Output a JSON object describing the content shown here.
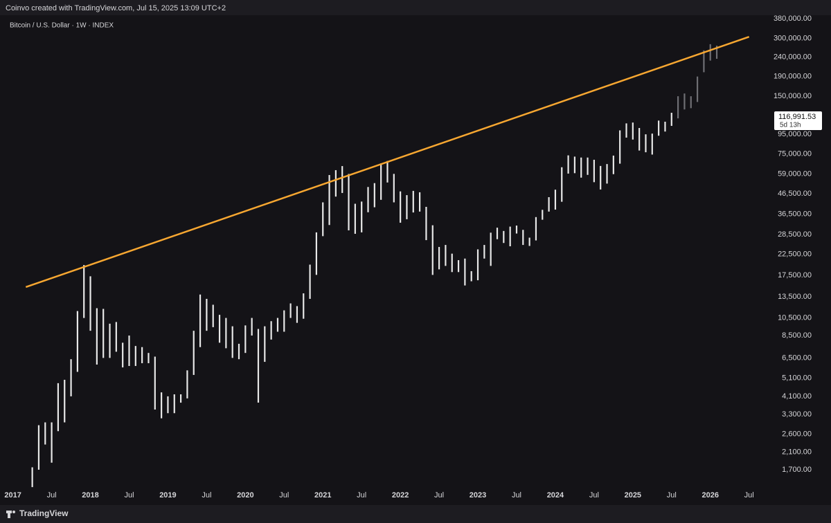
{
  "header": {
    "attribution": "Coinvo created with TradingView.com, Jul 15, 2025 13:09 UTC+2"
  },
  "footer": {
    "brand": "TradingView"
  },
  "chart_data": {
    "type": "range_bar",
    "title": "Bitcoin / U.S. Dollar · 1W · INDEX",
    "color": "#e8e8e8",
    "log_scale": true,
    "x": [
      "2017-04",
      "2017-05",
      "2017-06",
      "2017-07",
      "2017-08",
      "2017-09",
      "2017-10",
      "2017-11",
      "2017-12",
      "2018-01",
      "2018-02",
      "2018-03",
      "2018-04",
      "2018-05",
      "2018-06",
      "2018-07",
      "2018-08",
      "2018-09",
      "2018-10",
      "2018-11",
      "2018-12",
      "2019-01",
      "2019-02",
      "2019-03",
      "2019-04",
      "2019-05",
      "2019-06",
      "2019-07",
      "2019-08",
      "2019-09",
      "2019-10",
      "2019-11",
      "2019-12",
      "2020-01",
      "2020-02",
      "2020-03",
      "2020-04",
      "2020-05",
      "2020-06",
      "2020-07",
      "2020-08",
      "2020-09",
      "2020-10",
      "2020-11",
      "2020-12",
      "2021-01",
      "2021-02",
      "2021-03",
      "2021-04",
      "2021-05",
      "2021-06",
      "2021-07",
      "2021-08",
      "2021-09",
      "2021-10",
      "2021-11",
      "2021-12",
      "2022-01",
      "2022-02",
      "2022-03",
      "2022-04",
      "2022-05",
      "2022-06",
      "2022-07",
      "2022-08",
      "2022-09",
      "2022-10",
      "2022-11",
      "2022-12",
      "2023-01",
      "2023-02",
      "2023-03",
      "2023-04",
      "2023-05",
      "2023-06",
      "2023-07",
      "2023-08",
      "2023-09",
      "2023-10",
      "2023-11",
      "2023-12",
      "2024-01",
      "2024-02",
      "2024-03",
      "2024-04",
      "2024-05",
      "2024-06",
      "2024-07",
      "2024-08",
      "2024-09",
      "2024-10",
      "2024-11",
      "2024-12",
      "2025-01",
      "2025-02",
      "2025-03",
      "2025-04",
      "2025-05",
      "2025-06",
      "2025-07"
    ],
    "low": [
      1380,
      1700,
      2300,
      1850,
      2700,
      3000,
      4100,
      5500,
      10500,
      9000,
      6000,
      6500,
      6500,
      7000,
      5800,
      5900,
      5900,
      6100,
      6100,
      3500,
      3150,
      3350,
      3350,
      3800,
      4000,
      5300,
      7400,
      9000,
      9400,
      7800,
      7300,
      6500,
      6400,
      6900,
      8500,
      3800,
      6200,
      8100,
      8900,
      8900,
      10500,
      9900,
      10400,
      13200,
      17600,
      28000,
      32000,
      45000,
      47000,
      30000,
      28800,
      29300,
      37300,
      39600,
      43300,
      53300,
      42000,
      32900,
      34300,
      37200,
      37600,
      26700,
      17600,
      18800,
      19600,
      18200,
      18200,
      15500,
      16300,
      16500,
      21400,
      19600,
      27000,
      25800,
      24800,
      28900,
      25200,
      24900,
      26600,
      34100,
      37600,
      38500,
      42300,
      59300,
      59600,
      56500,
      58400,
      53500,
      49000,
      52600,
      58900,
      66800,
      91300,
      89200,
      78200,
      76600,
      74500,
      93400,
      98200,
      105100
    ],
    "high": [
      1750,
      2900,
      3000,
      3000,
      4800,
      5000,
      6400,
      11400,
      19800,
      17300,
      11800,
      11700,
      9800,
      10000,
      7800,
      8500,
      7500,
      7400,
      6900,
      6600,
      4300,
      4100,
      4200,
      4200,
      5600,
      9000,
      13900,
      13200,
      12300,
      10900,
      10500,
      9500,
      7700,
      9600,
      10500,
      9200,
      9500,
      10100,
      10500,
      11500,
      12500,
      12100,
      14100,
      19900,
      29300,
      42000,
      58300,
      61800,
      64900,
      59000,
      41300,
      42400,
      50500,
      52900,
      67000,
      69000,
      59100,
      47900,
      45800,
      48200,
      47400,
      39800,
      31900,
      24600,
      25200,
      22700,
      21000,
      21400,
      18400,
      23900,
      25200,
      29200,
      31000,
      29800,
      31400,
      31800,
      30200,
      27500,
      35200,
      38400,
      44700,
      48900,
      64000,
      73800,
      72700,
      71900,
      71900,
      70000,
      65000,
      66500,
      73600,
      99600,
      108300,
      109400,
      102500,
      95000,
      95800,
      112000,
      110500,
      123000
    ],
    "projection": {
      "color": "#6f6f74",
      "x": [
        "2025-08",
        "2025-09",
        "2025-10",
        "2025-11",
        "2025-12",
        "2026-01",
        "2026-02"
      ],
      "low": [
        115000,
        128000,
        130000,
        140000,
        200000,
        230000,
        235000
      ],
      "high": [
        150000,
        155000,
        150000,
        190000,
        260000,
        280000,
        275000
      ]
    },
    "trendline": {
      "x": [
        "2017-03",
        "2026-07"
      ],
      "values": [
        15200,
        306000
      ],
      "color": "#f7a731"
    },
    "last_price": {
      "value": 116991.53,
      "label": "116,991.53"
    },
    "countdown": "5d 13h",
    "xlim": [
      "2016-11",
      "2026-08"
    ],
    "xticks": [
      {
        "value": "2017-01",
        "label": "2017"
      },
      {
        "value": "2017-07",
        "label": "Jul"
      },
      {
        "value": "2018-01",
        "label": "2018"
      },
      {
        "value": "2018-07",
        "label": "Jul"
      },
      {
        "value": "2019-01",
        "label": "2019"
      },
      {
        "value": "2019-07",
        "label": "Jul"
      },
      {
        "value": "2020-01",
        "label": "2020"
      },
      {
        "value": "2020-07",
        "label": "Jul"
      },
      {
        "value": "2021-01",
        "label": "2021"
      },
      {
        "value": "2021-07",
        "label": "Jul"
      },
      {
        "value": "2022-01",
        "label": "2022"
      },
      {
        "value": "2022-07",
        "label": "Jul"
      },
      {
        "value": "2023-01",
        "label": "2023"
      },
      {
        "value": "2023-07",
        "label": "Jul"
      },
      {
        "value": "2024-01",
        "label": "2024"
      },
      {
        "value": "2024-07",
        "label": "Jul"
      },
      {
        "value": "2025-01",
        "label": "2025"
      },
      {
        "value": "2025-07",
        "label": "Jul"
      },
      {
        "value": "2026-01",
        "label": "2026"
      },
      {
        "value": "2026-07",
        "label": "Jul"
      }
    ],
    "ylim": [
      1370,
      403000
    ],
    "yticks": [
      {
        "value": 380000,
        "label": "380,000.00"
      },
      {
        "value": 300000,
        "label": "300,000.00"
      },
      {
        "value": 240000,
        "label": "240,000.00"
      },
      {
        "value": 190000,
        "label": "190,000.00"
      },
      {
        "value": 150000,
        "label": "150,000.00"
      },
      {
        "value": 95000,
        "label": "95,000.00"
      },
      {
        "value": 75000,
        "label": "75,000.00"
      },
      {
        "value": 59000,
        "label": "59,000.00"
      },
      {
        "value": 46500,
        "label": "46,500.00"
      },
      {
        "value": 36500,
        "label": "36,500.00"
      },
      {
        "value": 28500,
        "label": "28,500.00"
      },
      {
        "value": 22500,
        "label": "22,500.00"
      },
      {
        "value": 17500,
        "label": "17,500.00"
      },
      {
        "value": 13500,
        "label": "13,500.00"
      },
      {
        "value": 10500,
        "label": "10,500.00"
      },
      {
        "value": 8500,
        "label": "8,500.00"
      },
      {
        "value": 6500,
        "label": "6,500.00"
      },
      {
        "value": 5100,
        "label": "5,100.00"
      },
      {
        "value": 4100,
        "label": "4,100.00"
      },
      {
        "value": 3300,
        "label": "3,300.00"
      },
      {
        "value": 2600,
        "label": "2,600.00"
      },
      {
        "value": 2100,
        "label": "2,100.00"
      },
      {
        "value": 1700,
        "label": "1,700.00"
      }
    ]
  }
}
